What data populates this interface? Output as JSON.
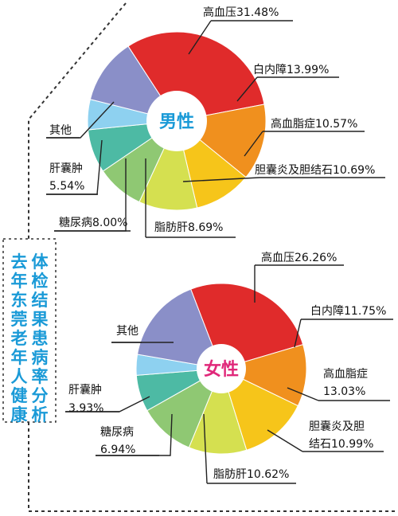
{
  "title": "去年东莞老年人健康体检结果患病率分析",
  "title_lines": [
    "去年东莞老年人健康",
    "体检结果患病率分析"
  ],
  "colors": {
    "red": "#e02b2b",
    "orange": "#f0901e",
    "yellow": "#f6c51a",
    "lime": "#d5e050",
    "green": "#8fc873",
    "teal": "#4dbaa4",
    "lightblue": "#8ed1f0",
    "purple": "#8a8fc8",
    "male_label": "#1a9ad7",
    "female_label": "#e0287a",
    "title": "#1a9ad7"
  },
  "chart_data": [
    {
      "type": "pie",
      "title": "男性",
      "slices": [
        {
          "label": "高血压",
          "value": 31.48,
          "color": "#e02b2b"
        },
        {
          "label": "白内障",
          "value": 13.99,
          "color": "#f0901e"
        },
        {
          "label": "高血脂症",
          "value": 10.57,
          "color": "#f6c51a"
        },
        {
          "label": "胆囊炎及胆结石",
          "value": 10.69,
          "color": "#d5e050"
        },
        {
          "label": "脂肪肝",
          "value": 8.69,
          "color": "#8fc873"
        },
        {
          "label": "糖尿病",
          "value": 8.0,
          "color": "#4dbaa4"
        },
        {
          "label": "肝囊肿",
          "value": 5.54,
          "color": "#8ed1f0"
        },
        {
          "label": "其他",
          "value": null,
          "color": "#8a8fc8"
        }
      ],
      "labels": [
        {
          "lines": [
            "高血压31.48%"
          ]
        },
        {
          "lines": [
            "白内障13.99%"
          ]
        },
        {
          "lines": [
            "高血脂症10.57%"
          ]
        },
        {
          "lines": [
            "胆囊炎及胆结石10.69%"
          ]
        },
        {
          "lines": [
            "脂肪肝8.69%"
          ]
        },
        {
          "lines": [
            "糖尿病8.00%"
          ]
        },
        {
          "lines": [
            "肝囊肿",
            "5.54%"
          ]
        },
        {
          "lines": [
            "其他"
          ]
        }
      ]
    },
    {
      "type": "pie",
      "title": "女性",
      "slices": [
        {
          "label": "高血压",
          "value": 26.26,
          "color": "#e02b2b"
        },
        {
          "label": "白内障",
          "value": 11.75,
          "color": "#f0901e"
        },
        {
          "label": "高血脂症",
          "value": 13.03,
          "color": "#f6c51a"
        },
        {
          "label": "胆囊炎及胆结石",
          "value": 10.99,
          "color": "#d5e050"
        },
        {
          "label": "脂肪肝",
          "value": 10.62,
          "color": "#8fc873"
        },
        {
          "label": "糖尿病",
          "value": 6.94,
          "color": "#4dbaa4"
        },
        {
          "label": "肝囊肿",
          "value": 3.93,
          "color": "#8ed1f0"
        },
        {
          "label": "其他",
          "value": null,
          "color": "#8a8fc8"
        }
      ],
      "labels": [
        {
          "lines": [
            "高血压26.26%"
          ]
        },
        {
          "lines": [
            "白内障11.75%"
          ]
        },
        {
          "lines": [
            "高血脂症",
            "13.03%"
          ]
        },
        {
          "lines": [
            "胆囊炎及胆",
            "结石10.99%"
          ]
        },
        {
          "lines": [
            "脂肪肝10.62%"
          ]
        },
        {
          "lines": [
            "糖尿病",
            "6.94%"
          ]
        },
        {
          "lines": [
            "肝囊肿",
            "3.93%"
          ]
        },
        {
          "lines": [
            "其他"
          ]
        }
      ]
    }
  ]
}
